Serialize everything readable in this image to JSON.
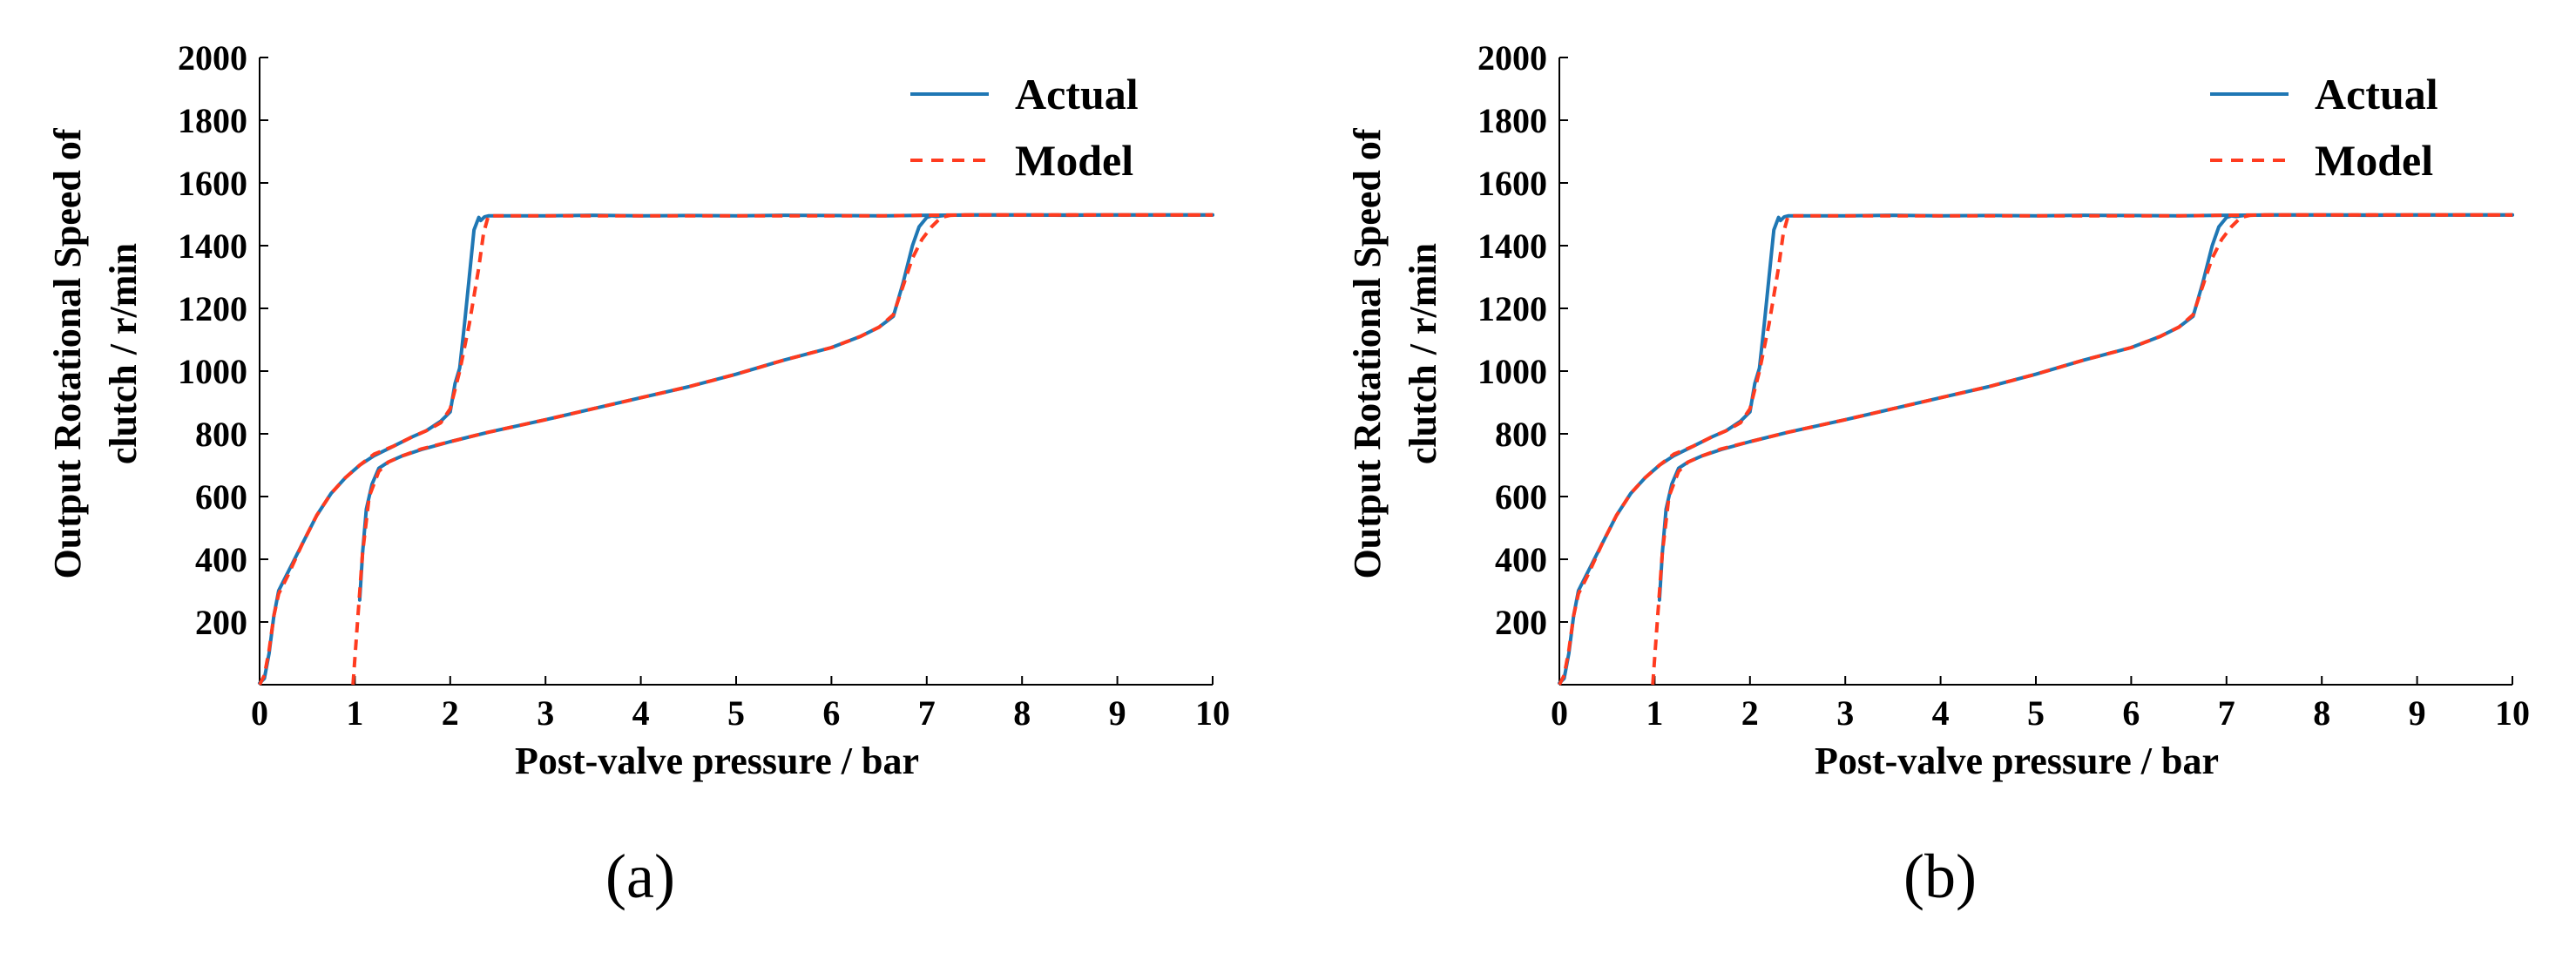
{
  "chart_data": [
    {
      "type": "line",
      "panel_label": "(a)",
      "xlabel": "Post-valve pressure / bar",
      "ylabel_lines": [
        "Output Rotational Speed of",
        "clutch / r/min"
      ],
      "xlim": [
        0,
        10
      ],
      "ylim": [
        0,
        2000
      ],
      "xticks": [
        "0",
        "1",
        "2",
        "3",
        "4",
        "5",
        "6",
        "7",
        "8",
        "9",
        "10"
      ],
      "yticks": [
        "200",
        "400",
        "600",
        "800",
        "1000",
        "1200",
        "1400",
        "1600",
        "1800",
        "2000"
      ],
      "grid": false,
      "legend_position": "top-right",
      "legend": [
        {
          "name": "Actual",
          "style": "solid",
          "color": "#1f77b4"
        },
        {
          "name": "Model",
          "style": "dashed",
          "color": "#ff3b1f"
        }
      ],
      "series": [
        {
          "name": "Actual",
          "color": "#1f77b4",
          "style": "solid",
          "x": [
            0.0,
            0.05,
            0.1,
            0.15,
            0.2,
            0.3,
            0.45,
            0.6,
            0.75,
            0.9,
            1.05,
            1.2,
            1.4,
            1.6,
            1.75,
            1.9,
            2.0,
            2.05,
            2.1,
            2.15,
            2.2,
            2.25,
            2.3,
            2.32,
            2.36,
            2.4,
            2.6,
            3,
            3.5,
            4,
            4.5,
            5,
            5.5,
            6,
            6.5,
            7,
            7.5,
            8,
            8.5,
            9,
            9.5,
            10
          ],
          "y": [
            5,
            20,
            100,
            220,
            300,
            360,
            450,
            540,
            610,
            660,
            700,
            730,
            760,
            790,
            810,
            840,
            870,
            960,
            1010,
            1150,
            1300,
            1450,
            1490,
            1480,
            1492,
            1495,
            1495,
            1495,
            1497,
            1495,
            1496,
            1495,
            1497,
            1496,
            1495,
            1497,
            1498,
            1498,
            1497,
            1498,
            1498,
            1498
          ]
        },
        {
          "name": "Actual",
          "color": "#1f77b4",
          "style": "solid",
          "x": [
            1.05,
            1.08,
            1.12,
            1.18,
            1.25,
            1.35,
            1.5,
            1.7,
            2,
            2.4,
            3,
            3.5,
            4,
            4.5,
            5,
            5.5,
            6,
            6.3,
            6.5,
            6.65,
            6.75,
            6.85,
            6.92,
            7,
            7.05,
            7.1,
            7.2,
            7.5,
            8,
            8.5,
            9,
            9.5,
            10
          ],
          "y": [
            270,
            420,
            560,
            640,
            690,
            710,
            730,
            750,
            775,
            805,
            845,
            880,
            915,
            950,
            990,
            1035,
            1075,
            1110,
            1140,
            1175,
            1280,
            1400,
            1460,
            1490,
            1495,
            1493,
            1497,
            1498,
            1498,
            1498,
            1498,
            1498,
            1498
          ]
        },
        {
          "name": "Model",
          "color": "#ff3b1f",
          "style": "dashed",
          "x": [
            0.0,
            0.05,
            0.1,
            0.15,
            0.2,
            0.3,
            0.45,
            0.6,
            0.75,
            0.9,
            1.05,
            1.2,
            1.4,
            1.6,
            1.75,
            1.9,
            2.0,
            2.1,
            2.2,
            2.3,
            2.35,
            2.4,
            2.6,
            3,
            3.5,
            4,
            4.5,
            5,
            5.5,
            6,
            6.5,
            7,
            7.5,
            8,
            8.5,
            9,
            9.5,
            10
          ],
          "y": [
            0,
            30,
            110,
            220,
            290,
            350,
            450,
            540,
            610,
            660,
            700,
            735,
            760,
            790,
            810,
            835,
            880,
            1000,
            1150,
            1330,
            1440,
            1495,
            1495,
            1495,
            1495,
            1495,
            1495,
            1495,
            1495,
            1495,
            1495,
            1497,
            1498,
            1498,
            1498,
            1498,
            1498,
            1498
          ]
        },
        {
          "name": "Model",
          "color": "#ff3b1f",
          "style": "dashed",
          "x": [
            0.98,
            1.02,
            1.08,
            1.15,
            1.25,
            1.35,
            1.5,
            1.7,
            2,
            2.4,
            3,
            3.5,
            4,
            4.5,
            5,
            5.5,
            6,
            6.3,
            6.5,
            6.65,
            6.75,
            6.85,
            6.95,
            7.05,
            7.15,
            7.25,
            7.5,
            8,
            8.5,
            9,
            9.5,
            10
          ],
          "y": [
            0,
            170,
            420,
            600,
            680,
            710,
            730,
            752,
            775,
            805,
            845,
            880,
            915,
            950,
            990,
            1035,
            1075,
            1110,
            1140,
            1180,
            1270,
            1360,
            1420,
            1460,
            1490,
            1497,
            1498,
            1498,
            1498,
            1498,
            1498,
            1498
          ]
        }
      ]
    },
    {
      "type": "line",
      "panel_label": "(b)",
      "xlabel": "Post-valve pressure / bar",
      "ylabel_lines": [
        "Output Rotational Speed of",
        "clutch / r/min"
      ],
      "xlim": [
        0,
        10
      ],
      "ylim": [
        0,
        2000
      ],
      "xticks": [
        "0",
        "1",
        "2",
        "3",
        "4",
        "5",
        "6",
        "7",
        "8",
        "9",
        "10"
      ],
      "yticks": [
        "200",
        "400",
        "600",
        "800",
        "1000",
        "1200",
        "1400",
        "1600",
        "1800",
        "2000"
      ],
      "grid": false,
      "legend_position": "top-right",
      "legend": [
        {
          "name": "Actual",
          "style": "solid",
          "color": "#1f77b4"
        },
        {
          "name": "Model",
          "style": "dashed",
          "color": "#ff3b1f"
        }
      ],
      "series": [
        {
          "name": "Actual",
          "color": "#1f77b4",
          "style": "solid",
          "x": [
            0.0,
            0.05,
            0.1,
            0.15,
            0.2,
            0.3,
            0.45,
            0.6,
            0.75,
            0.9,
            1.05,
            1.2,
            1.4,
            1.6,
            1.75,
            1.9,
            2.0,
            2.05,
            2.1,
            2.15,
            2.2,
            2.25,
            2.3,
            2.32,
            2.36,
            2.4,
            2.6,
            3,
            3.5,
            4,
            4.5,
            5,
            5.5,
            6,
            6.5,
            7,
            7.5,
            8,
            8.5,
            9,
            9.5,
            10
          ],
          "y": [
            5,
            20,
            100,
            220,
            300,
            360,
            450,
            540,
            610,
            660,
            700,
            730,
            760,
            790,
            810,
            840,
            870,
            960,
            1010,
            1150,
            1300,
            1450,
            1490,
            1480,
            1492,
            1495,
            1495,
            1495,
            1497,
            1495,
            1496,
            1495,
            1497,
            1496,
            1495,
            1497,
            1498,
            1498,
            1497,
            1498,
            1498,
            1498
          ]
        },
        {
          "name": "Actual",
          "color": "#1f77b4",
          "style": "solid",
          "x": [
            1.05,
            1.08,
            1.12,
            1.18,
            1.25,
            1.35,
            1.5,
            1.7,
            2,
            2.4,
            3,
            3.5,
            4,
            4.5,
            5,
            5.5,
            6,
            6.3,
            6.5,
            6.65,
            6.75,
            6.85,
            6.92,
            7,
            7.05,
            7.1,
            7.2,
            7.5,
            8,
            8.5,
            9,
            9.5,
            10
          ],
          "y": [
            270,
            420,
            560,
            640,
            690,
            710,
            730,
            750,
            775,
            805,
            845,
            880,
            915,
            950,
            990,
            1035,
            1075,
            1110,
            1140,
            1175,
            1280,
            1400,
            1460,
            1490,
            1495,
            1493,
            1497,
            1498,
            1498,
            1498,
            1498,
            1498,
            1498
          ]
        },
        {
          "name": "Model",
          "color": "#ff3b1f",
          "style": "dashed",
          "x": [
            0.0,
            0.05,
            0.1,
            0.15,
            0.2,
            0.3,
            0.45,
            0.6,
            0.75,
            0.9,
            1.05,
            1.2,
            1.4,
            1.6,
            1.75,
            1.9,
            2.0,
            2.1,
            2.2,
            2.3,
            2.35,
            2.4,
            2.6,
            3,
            3.5,
            4,
            4.5,
            5,
            5.5,
            6,
            6.5,
            7,
            7.5,
            8,
            8.5,
            9,
            9.5,
            10
          ],
          "y": [
            0,
            30,
            110,
            220,
            290,
            350,
            450,
            540,
            610,
            660,
            700,
            735,
            760,
            790,
            810,
            835,
            880,
            1000,
            1150,
            1330,
            1440,
            1495,
            1495,
            1495,
            1495,
            1495,
            1495,
            1495,
            1495,
            1495,
            1495,
            1497,
            1498,
            1498,
            1498,
            1498,
            1498,
            1498
          ]
        },
        {
          "name": "Model",
          "color": "#ff3b1f",
          "style": "dashed",
          "x": [
            0.98,
            1.02,
            1.08,
            1.15,
            1.25,
            1.35,
            1.5,
            1.7,
            2,
            2.4,
            3,
            3.5,
            4,
            4.5,
            5,
            5.5,
            6,
            6.3,
            6.5,
            6.65,
            6.75,
            6.85,
            6.95,
            7.05,
            7.15,
            7.25,
            7.5,
            8,
            8.5,
            9,
            9.5,
            10
          ],
          "y": [
            0,
            170,
            420,
            600,
            680,
            710,
            730,
            752,
            775,
            805,
            845,
            880,
            915,
            950,
            990,
            1035,
            1075,
            1110,
            1140,
            1180,
            1270,
            1360,
            1420,
            1460,
            1490,
            1497,
            1498,
            1498,
            1498,
            1498,
            1498,
            1498
          ]
        }
      ]
    }
  ]
}
